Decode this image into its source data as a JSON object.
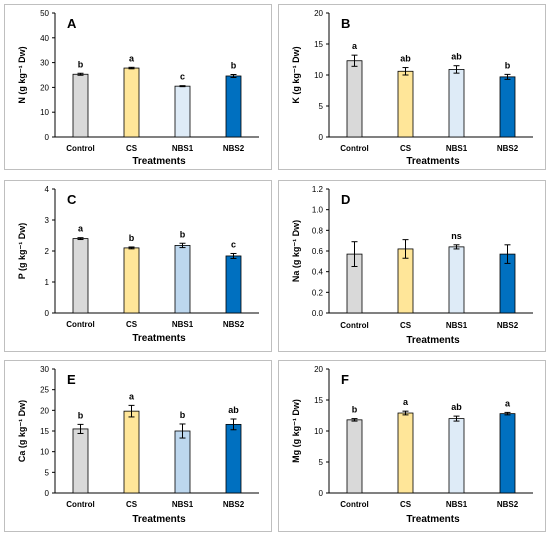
{
  "bar_colors": [
    "#d9d9d9",
    "#ffe699",
    "#deebf7",
    "#0070c0"
  ],
  "bar_colors_C_E": [
    "#d9d9d9",
    "#ffe699",
    "#bdd7ee",
    "#0070c0"
  ],
  "chart_data": [
    {
      "type": "bar",
      "panel_label": "A",
      "categories": [
        "Control",
        "CS",
        "NBS1",
        "NBS2"
      ],
      "values": [
        25.3,
        27.8,
        20.5,
        24.6
      ],
      "errors": [
        0.4,
        0.3,
        0.2,
        0.6
      ],
      "letters": [
        "b",
        "a",
        "c",
        "b"
      ],
      "xlabel": "Treatments",
      "ylabel": "N (g kg⁻¹ Dw)",
      "ylim": [
        0,
        50
      ],
      "yticks": [
        "0",
        "10",
        "20",
        "30",
        "40",
        "50"
      ]
    },
    {
      "type": "bar",
      "panel_label": "B",
      "categories": [
        "Control",
        "CS",
        "NBS1",
        "NBS2"
      ],
      "values": [
        12.3,
        10.6,
        10.9,
        9.7
      ],
      "errors": [
        0.9,
        0.6,
        0.6,
        0.4
      ],
      "letters": [
        "a",
        "ab",
        "ab",
        "b"
      ],
      "xlabel": "Treatments",
      "ylabel": "K (g kg⁻¹ Dw)",
      "ylim": [
        0,
        20
      ],
      "yticks": [
        "0",
        "5",
        "10",
        "15",
        "20"
      ]
    },
    {
      "type": "bar",
      "panel_label": "C",
      "categories": [
        "Control",
        "CS",
        "NBS1",
        "NBS2"
      ],
      "values": [
        2.4,
        2.1,
        2.18,
        1.84
      ],
      "errors": [
        0.03,
        0.03,
        0.07,
        0.08
      ],
      "letters": [
        "a",
        "b",
        "b",
        "c"
      ],
      "xlabel": "Treatments",
      "ylabel": "P (g kg⁻¹ Dw)",
      "ylim": [
        0,
        4
      ],
      "yticks": [
        "0",
        "1",
        "2",
        "3",
        "4"
      ]
    },
    {
      "type": "bar",
      "panel_label": "D",
      "categories": [
        "Control",
        "CS",
        "NBS1",
        "NBS2"
      ],
      "values": [
        0.57,
        0.62,
        0.64,
        0.57
      ],
      "errors": [
        0.12,
        0.09,
        0.02,
        0.09
      ],
      "letters": [
        "",
        "",
        "ns",
        ""
      ],
      "xlabel": "Treatments",
      "ylabel": "Na (g kg⁻¹ Dw)",
      "ylim": [
        0,
        1.2
      ],
      "yticks": [
        "0.0",
        "0.2",
        "0.4",
        "0.6",
        "0.8",
        "1.0",
        "1.2"
      ]
    },
    {
      "type": "bar",
      "panel_label": "E",
      "categories": [
        "Control",
        "CS",
        "NBS1",
        "NBS2"
      ],
      "values": [
        15.5,
        19.8,
        15.0,
        16.6
      ],
      "errors": [
        1.1,
        1.4,
        1.7,
        1.3
      ],
      "letters": [
        "b",
        "a",
        "b",
        "ab"
      ],
      "xlabel": "Treatments",
      "ylabel": "Ca (g kg⁻¹ Dw)",
      "ylim": [
        0,
        30
      ],
      "yticks": [
        "0",
        "5",
        "10",
        "15",
        "20",
        "25",
        "30"
      ]
    },
    {
      "type": "bar",
      "panel_label": "F",
      "categories": [
        "Control",
        "CS",
        "NBS1",
        "NBS2"
      ],
      "values": [
        11.8,
        12.9,
        12.0,
        12.8
      ],
      "errors": [
        0.2,
        0.3,
        0.4,
        0.2
      ],
      "letters": [
        "b",
        "a",
        "ab",
        "a"
      ],
      "xlabel": "Treatments",
      "ylabel": "Mg (g kg⁻¹ Dw)",
      "ylim": [
        0,
        20
      ],
      "yticks": [
        "0",
        "5",
        "10",
        "15",
        "20"
      ]
    }
  ]
}
